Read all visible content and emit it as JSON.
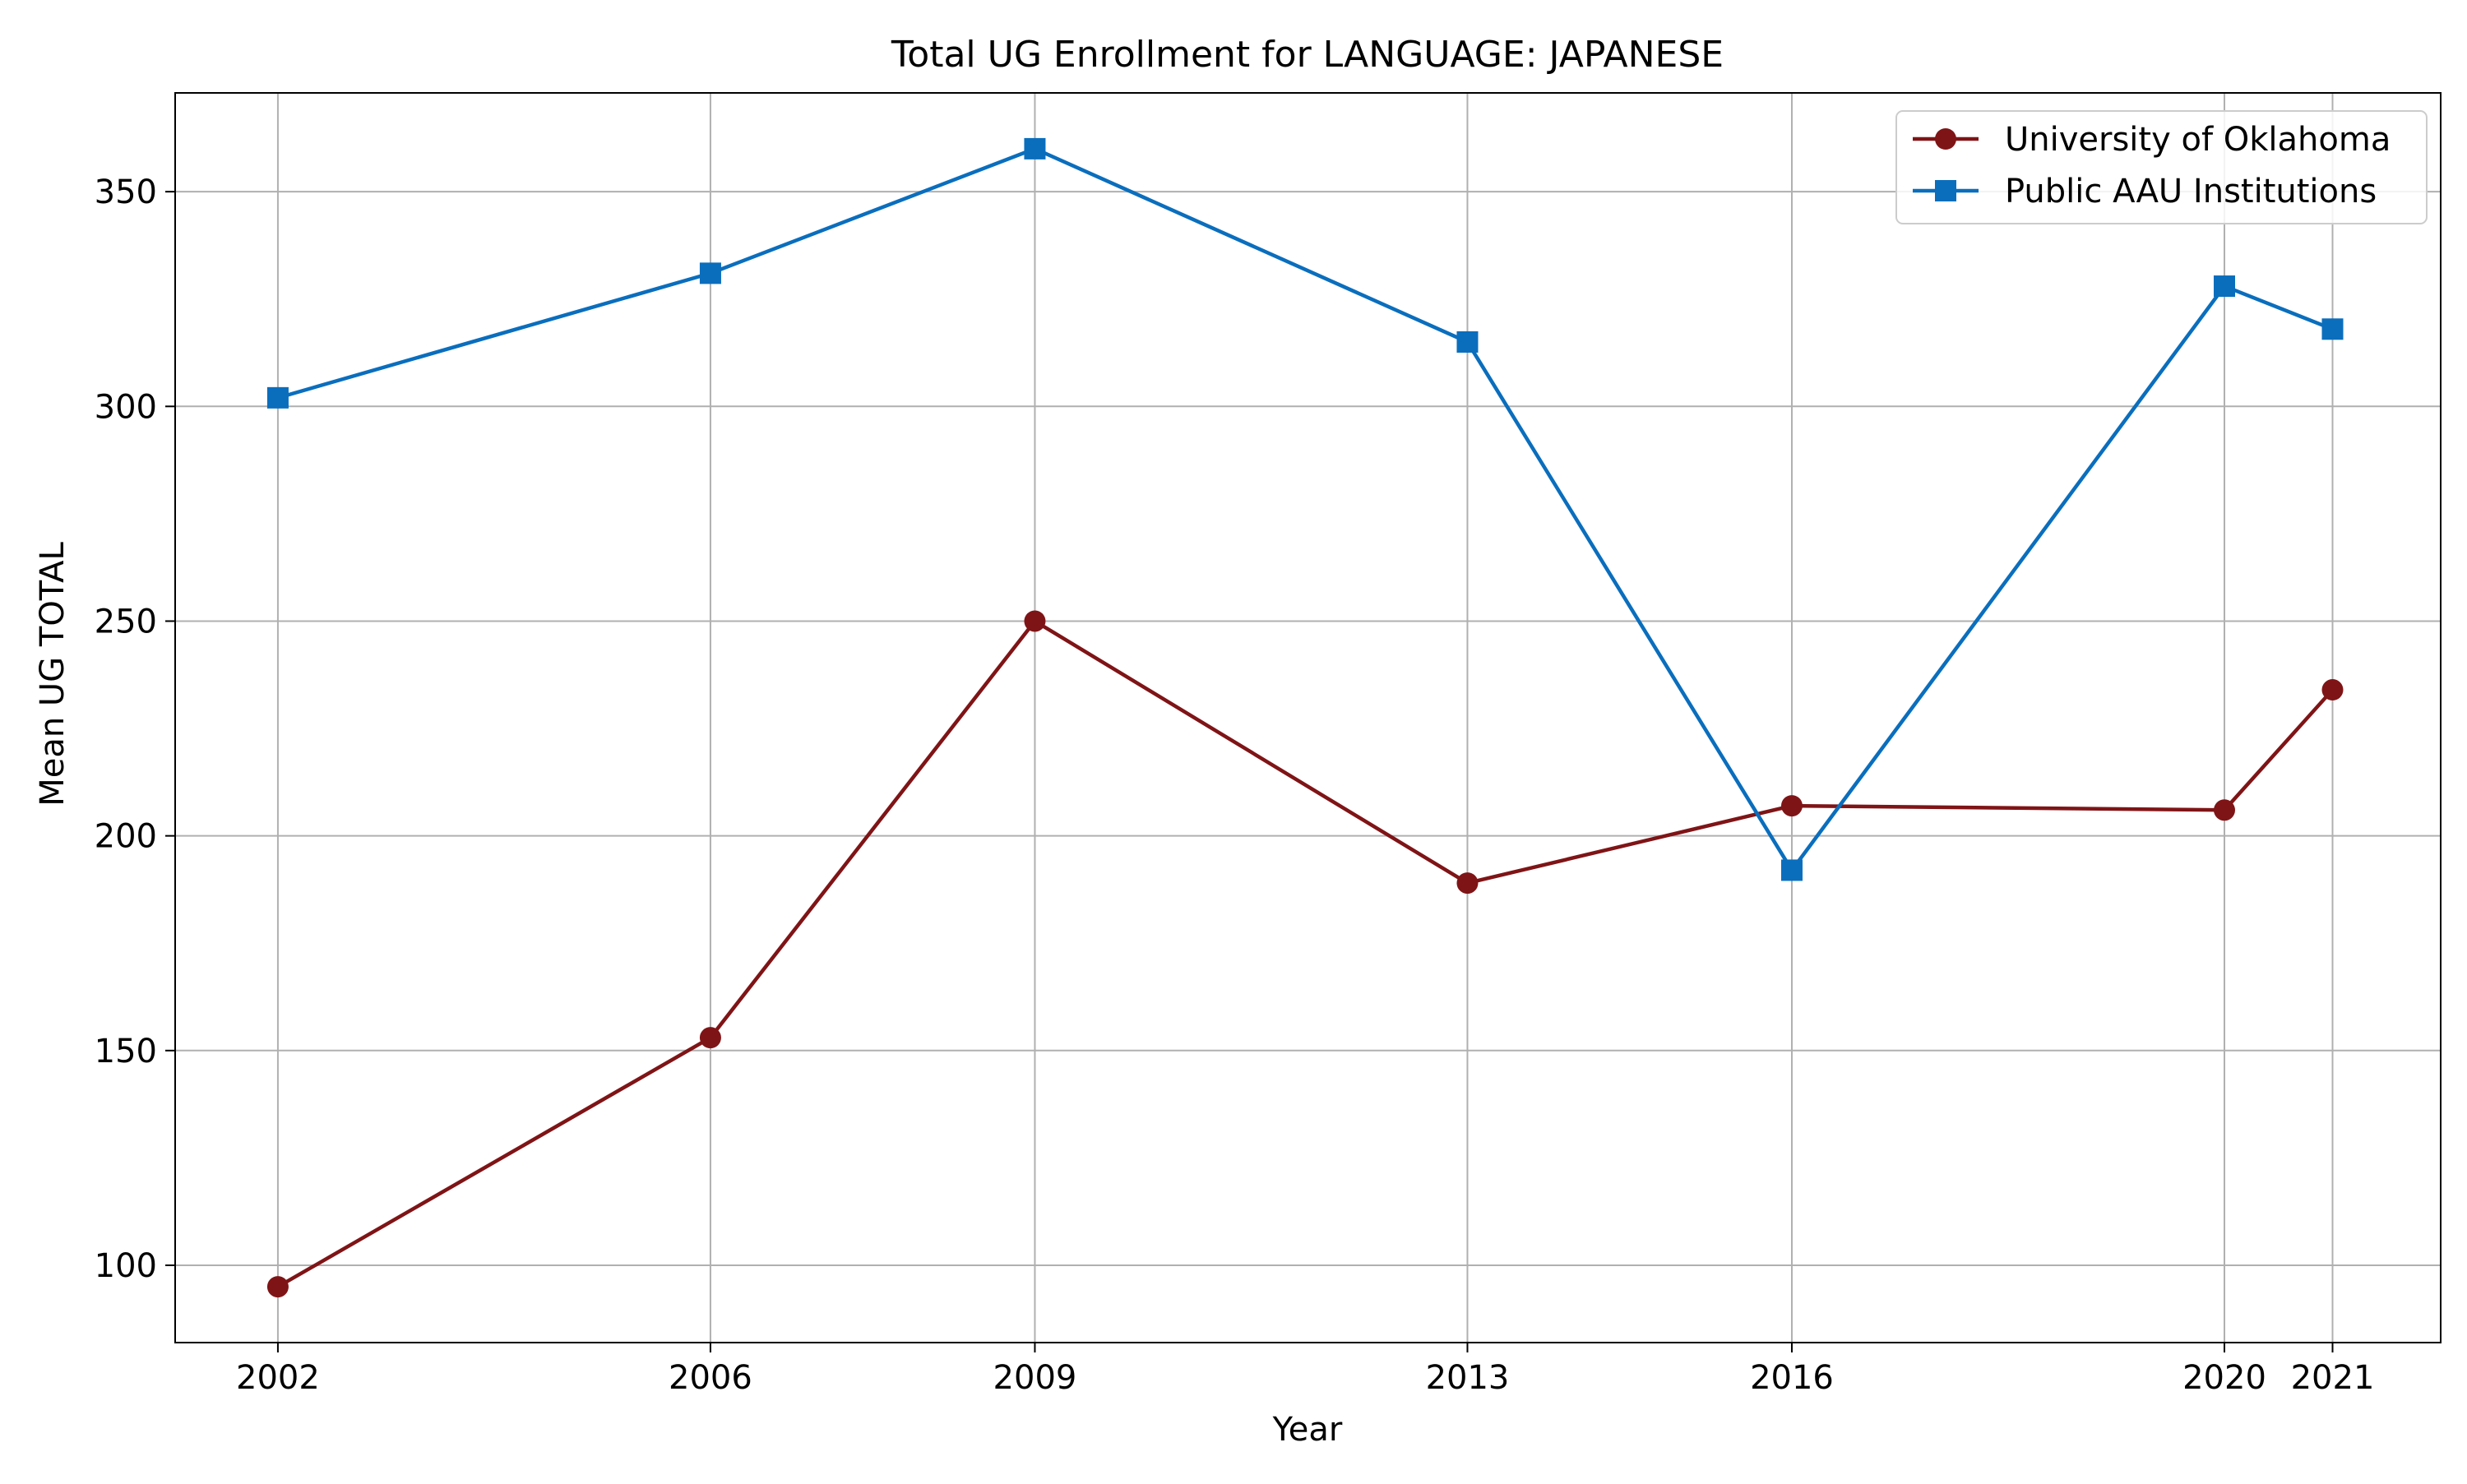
{
  "chart_data": {
    "type": "line",
    "title": "Total UG Enrollment for LANGUAGE: JAPANESE",
    "xlabel": "Year",
    "ylabel": "Mean UG TOTAL",
    "x": [
      2002,
      2006,
      2009,
      2013,
      2016,
      2020,
      2021
    ],
    "xlim": [
      2001.05,
      2022.0
    ],
    "ylim": [
      82,
      373
    ],
    "yticks": [
      100,
      150,
      200,
      250,
      300,
      350
    ],
    "grid": true,
    "legend_position": "top-right",
    "series": [
      {
        "name": "University of Oklahoma",
        "color": "#7f1416",
        "marker": "circle",
        "values": [
          95,
          153,
          250,
          189,
          207,
          206,
          234
        ]
      },
      {
        "name": "Public AAU Institutions",
        "color": "#0a6ebd",
        "marker": "square",
        "values": [
          302,
          331,
          360,
          315,
          192,
          328,
          318
        ]
      }
    ]
  }
}
